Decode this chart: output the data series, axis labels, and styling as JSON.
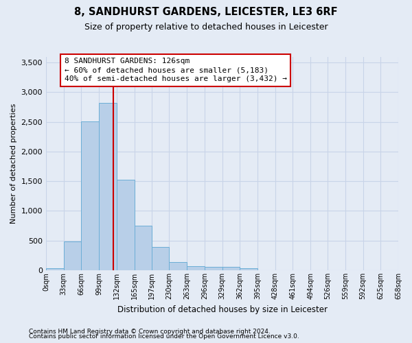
{
  "title": "8, SANDHURST GARDENS, LEICESTER, LE3 6RF",
  "subtitle": "Size of property relative to detached houses in Leicester",
  "xlabel": "Distribution of detached houses by size in Leicester",
  "ylabel": "Number of detached properties",
  "bin_edges": [
    0,
    33,
    66,
    99,
    132,
    165,
    197,
    230,
    263,
    296,
    329,
    362,
    395,
    428,
    461,
    494,
    526,
    559,
    592,
    625,
    658
  ],
  "bar_heights": [
    30,
    480,
    2510,
    2820,
    1520,
    750,
    390,
    140,
    70,
    55,
    55,
    30,
    0,
    0,
    0,
    0,
    0,
    0,
    0,
    0
  ],
  "bar_color": "#b8cfe8",
  "bar_edge_color": "#6baed6",
  "property_size": 126,
  "red_line_color": "#cc0000",
  "annotation_text": "8 SANDHURST GARDENS: 126sqm\n← 60% of detached houses are smaller (5,183)\n40% of semi-detached houses are larger (3,432) →",
  "annotation_box_color": "#ffffff",
  "annotation_box_edge_color": "#cc0000",
  "ylim": [
    0,
    3600
  ],
  "yticks": [
    0,
    500,
    1000,
    1500,
    2000,
    2500,
    3000,
    3500
  ],
  "grid_color": "#c8d4e8",
  "background_color": "#e4ebf5",
  "plot_background_color": "#e4ebf5",
  "footer_line1": "Contains HM Land Registry data © Crown copyright and database right 2024.",
  "footer_line2": "Contains public sector information licensed under the Open Government Licence v3.0.",
  "tick_labels": [
    "0sqm",
    "33sqm",
    "66sqm",
    "99sqm",
    "132sqm",
    "165sqm",
    "197sqm",
    "230sqm",
    "263sqm",
    "296sqm",
    "329sqm",
    "362sqm",
    "395sqm",
    "428sqm",
    "461sqm",
    "494sqm",
    "526sqm",
    "559sqm",
    "592sqm",
    "625sqm",
    "658sqm"
  ]
}
